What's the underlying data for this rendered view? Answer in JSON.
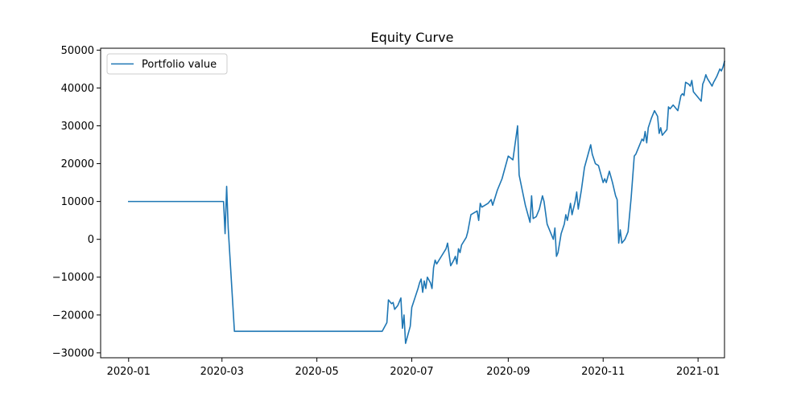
{
  "chart_data": {
    "type": "line",
    "title": "Equity Curve",
    "xlabel": "",
    "ylabel": "",
    "grid": false,
    "legend_position": "upper left",
    "x_axis_type": "date",
    "xlim": [
      "2019-12-14",
      "2021-01-18"
    ],
    "ylim": [
      -31300,
      50500
    ],
    "x_ticks": [
      {
        "value": "2020-01-01",
        "label": "2020-01"
      },
      {
        "value": "2020-03-01",
        "label": "2020-03"
      },
      {
        "value": "2020-05-01",
        "label": "2020-05"
      },
      {
        "value": "2020-07-01",
        "label": "2020-07"
      },
      {
        "value": "2020-09-01",
        "label": "2020-09"
      },
      {
        "value": "2020-11-01",
        "label": "2020-11"
      },
      {
        "value": "2021-01-01",
        "label": "2021-01"
      }
    ],
    "y_ticks": [
      {
        "value": -30000,
        "label": "−30000"
      },
      {
        "value": -20000,
        "label": "−20000"
      },
      {
        "value": -10000,
        "label": "−10000"
      },
      {
        "value": 0,
        "label": "0"
      },
      {
        "value": 10000,
        "label": "10000"
      },
      {
        "value": 20000,
        "label": "20000"
      },
      {
        "value": 30000,
        "label": "30000"
      },
      {
        "value": 40000,
        "label": "40000"
      },
      {
        "value": 50000,
        "label": "50000"
      }
    ],
    "series": [
      {
        "name": "Portfolio value",
        "color": "#1f77b4",
        "points": [
          [
            "2020-01-01",
            10000
          ],
          [
            "2020-03-02",
            10000
          ],
          [
            "2020-03-03",
            1500
          ],
          [
            "2020-03-04",
            14000
          ],
          [
            "2020-03-05",
            3000
          ],
          [
            "2020-03-09",
            -24300
          ],
          [
            "2020-06-12",
            -24300
          ],
          [
            "2020-06-15",
            -22000
          ],
          [
            "2020-06-16",
            -16000
          ],
          [
            "2020-06-17",
            -16500
          ],
          [
            "2020-06-18",
            -17000
          ],
          [
            "2020-06-19",
            -16700
          ],
          [
            "2020-06-20",
            -18500
          ],
          [
            "2020-06-22",
            -17500
          ],
          [
            "2020-06-23",
            -16500
          ],
          [
            "2020-06-24",
            -15500
          ],
          [
            "2020-06-25",
            -23500
          ],
          [
            "2020-06-26",
            -20000
          ],
          [
            "2020-06-27",
            -27500
          ],
          [
            "2020-06-30",
            -23000
          ],
          [
            "2020-07-01",
            -18000
          ],
          [
            "2020-07-03",
            -15500
          ],
          [
            "2020-07-05",
            -13000
          ],
          [
            "2020-07-06",
            -11500
          ],
          [
            "2020-07-07",
            -10500
          ],
          [
            "2020-07-08",
            -14000
          ],
          [
            "2020-07-09",
            -11000
          ],
          [
            "2020-07-10",
            -13000
          ],
          [
            "2020-07-11",
            -10000
          ],
          [
            "2020-07-13",
            -11500
          ],
          [
            "2020-07-14",
            -13000
          ],
          [
            "2020-07-15",
            -7500
          ],
          [
            "2020-07-16",
            -5500
          ],
          [
            "2020-07-17",
            -6500
          ],
          [
            "2020-07-20",
            -4500
          ],
          [
            "2020-07-23",
            -2500
          ],
          [
            "2020-07-24",
            -1000
          ],
          [
            "2020-07-26",
            -7000
          ],
          [
            "2020-07-28",
            -5500
          ],
          [
            "2020-07-29",
            -4500
          ],
          [
            "2020-07-30",
            -6500
          ],
          [
            "2020-07-31",
            -2500
          ],
          [
            "2020-08-01",
            -3500
          ],
          [
            "2020-08-02",
            -1500
          ],
          [
            "2020-08-05",
            500
          ],
          [
            "2020-08-06",
            2000
          ],
          [
            "2020-08-08",
            6500
          ],
          [
            "2020-08-12",
            7500
          ],
          [
            "2020-08-13",
            5000
          ],
          [
            "2020-08-14",
            9500
          ],
          [
            "2020-08-15",
            8500
          ],
          [
            "2020-08-19",
            9500
          ],
          [
            "2020-08-21",
            10500
          ],
          [
            "2020-08-22",
            9000
          ],
          [
            "2020-08-25",
            13000
          ],
          [
            "2020-08-28",
            16000
          ],
          [
            "2020-08-30",
            19000
          ],
          [
            "2020-08-31",
            20500
          ],
          [
            "2020-09-01",
            22000
          ],
          [
            "2020-09-04",
            21000
          ],
          [
            "2020-09-05",
            24000
          ],
          [
            "2020-09-07",
            30000
          ],
          [
            "2020-09-08",
            17000
          ],
          [
            "2020-09-10",
            13000
          ],
          [
            "2020-09-12",
            9000
          ],
          [
            "2020-09-15",
            4500
          ],
          [
            "2020-09-16",
            11500
          ],
          [
            "2020-09-17",
            5500
          ],
          [
            "2020-09-19",
            6000
          ],
          [
            "2020-09-21",
            8000
          ],
          [
            "2020-09-23",
            11500
          ],
          [
            "2020-09-24",
            10000
          ],
          [
            "2020-09-26",
            4000
          ],
          [
            "2020-09-28",
            2000
          ],
          [
            "2020-09-30",
            0
          ],
          [
            "2020-10-01",
            3000
          ],
          [
            "2020-10-02",
            -4500
          ],
          [
            "2020-10-03",
            -3500
          ],
          [
            "2020-10-05",
            1500
          ],
          [
            "2020-10-07",
            4000
          ],
          [
            "2020-10-08",
            6500
          ],
          [
            "2020-10-09",
            5000
          ],
          [
            "2020-10-11",
            9500
          ],
          [
            "2020-10-12",
            6500
          ],
          [
            "2020-10-14",
            10000
          ],
          [
            "2020-10-15",
            12500
          ],
          [
            "2020-10-16",
            8000
          ],
          [
            "2020-10-18",
            13000
          ],
          [
            "2020-10-20",
            19000
          ],
          [
            "2020-10-22",
            22000
          ],
          [
            "2020-10-24",
            25000
          ],
          [
            "2020-10-25",
            22500
          ],
          [
            "2020-10-27",
            20000
          ],
          [
            "2020-10-29",
            19500
          ],
          [
            "2020-11-01",
            15000
          ],
          [
            "2020-11-02",
            16000
          ],
          [
            "2020-11-03",
            15000
          ],
          [
            "2020-11-05",
            18000
          ],
          [
            "2020-11-07",
            15000
          ],
          [
            "2020-11-09",
            11500
          ],
          [
            "2020-11-10",
            10500
          ],
          [
            "2020-11-11",
            -1000
          ],
          [
            "2020-11-12",
            2500
          ],
          [
            "2020-11-13",
            -1000
          ],
          [
            "2020-11-15",
            0
          ],
          [
            "2020-11-17",
            2000
          ],
          [
            "2020-11-19",
            11000
          ],
          [
            "2020-11-21",
            22000
          ],
          [
            "2020-11-22",
            22500
          ],
          [
            "2020-11-26",
            26500
          ],
          [
            "2020-11-27",
            26000
          ],
          [
            "2020-11-28",
            28500
          ],
          [
            "2020-11-29",
            25500
          ],
          [
            "2020-11-30",
            29500
          ],
          [
            "2020-12-02",
            32000
          ],
          [
            "2020-12-04",
            34000
          ],
          [
            "2020-12-06",
            32500
          ],
          [
            "2020-12-07",
            28000
          ],
          [
            "2020-12-08",
            29500
          ],
          [
            "2020-12-09",
            27500
          ],
          [
            "2020-12-12",
            29000
          ],
          [
            "2020-12-13",
            35000
          ],
          [
            "2020-12-14",
            34500
          ],
          [
            "2020-12-16",
            35500
          ],
          [
            "2020-12-19",
            34000
          ],
          [
            "2020-12-21",
            38000
          ],
          [
            "2020-12-22",
            38500
          ],
          [
            "2020-12-23",
            38000
          ],
          [
            "2020-12-24",
            41500
          ],
          [
            "2020-12-26",
            41000
          ],
          [
            "2020-12-27",
            40500
          ],
          [
            "2020-12-28",
            42000
          ],
          [
            "2020-12-29",
            39000
          ],
          [
            "2021-01-02",
            37000
          ],
          [
            "2021-01-03",
            36500
          ],
          [
            "2021-01-04",
            41000
          ],
          [
            "2021-01-05",
            42000
          ],
          [
            "2021-01-06",
            43500
          ],
          [
            "2021-01-07",
            42500
          ],
          [
            "2021-01-10",
            40500
          ],
          [
            "2021-01-11",
            41500
          ],
          [
            "2021-01-13",
            43000
          ],
          [
            "2021-01-14",
            44000
          ],
          [
            "2021-01-15",
            45000
          ],
          [
            "2021-01-16",
            44500
          ],
          [
            "2021-01-17",
            45500
          ],
          [
            "2021-01-18",
            47000
          ]
        ]
      }
    ]
  }
}
